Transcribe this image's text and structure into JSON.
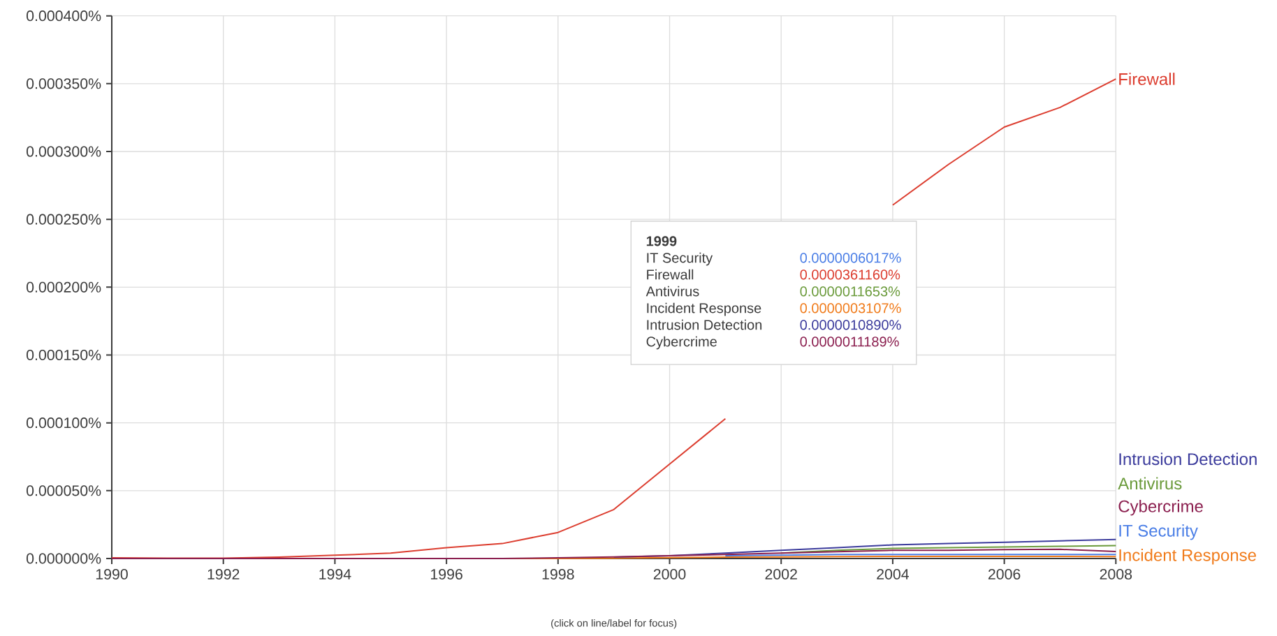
{
  "chart_data": {
    "type": "line",
    "x": [
      1990,
      1991,
      1992,
      1993,
      1994,
      1995,
      1996,
      1997,
      1998,
      1999,
      2000,
      2001,
      2002,
      2003,
      2004,
      2005,
      2006,
      2007,
      2008
    ],
    "series": [
      {
        "name": "IT Security",
        "color": "#4a7ee6",
        "values": [
          null,
          null,
          null,
          null,
          null,
          null,
          null,
          null,
          null,
          null,
          null,
          2e-06,
          2.5e-06,
          3e-06,
          3e-06,
          3e-06,
          3e-06,
          3e-06,
          3e-06
        ]
      },
      {
        "name": "Firewall",
        "color": "#dc3d2f",
        "values": [
          5e-07,
          3e-07,
          3e-07,
          1e-06,
          2.4e-06,
          4e-06,
          8e-06,
          1.1e-05,
          1.92e-05,
          3.6116e-05,
          6.96e-05,
          0.000103,
          null,
          null,
          0.0002605,
          0.0002905,
          0.000318,
          0.0003325,
          0.0003535
        ]
      },
      {
        "name": "Antivirus",
        "color": "#6a9a3a",
        "values": [
          null,
          null,
          null,
          null,
          null,
          null,
          null,
          null,
          null,
          null,
          null,
          null,
          4e-06,
          6e-06,
          7.5e-06,
          8e-06,
          8.5e-06,
          9e-06,
          9.5e-06
        ]
      },
      {
        "name": "Incident Response",
        "color": "#f07b1a",
        "values": [
          null,
          null,
          0,
          0,
          0,
          0,
          0,
          0,
          0,
          3.107e-07,
          6e-07,
          1e-06,
          1.2e-06,
          1.4e-06,
          1.5e-06,
          1.5e-06,
          1.5e-06,
          1.5e-06,
          1.4e-06
        ]
      },
      {
        "name": "Intrusion Detection",
        "color": "#3b3b9c",
        "values": [
          null,
          null,
          null,
          null,
          null,
          null,
          null,
          null,
          null,
          1.089e-06,
          2e-06,
          4e-06,
          6e-06,
          8e-06,
          1e-05,
          1.1e-05,
          1.2e-05,
          1.3e-05,
          1.4e-05
        ]
      },
      {
        "name": "Cybercrime",
        "color": "#8b1f4f",
        "values": [
          0,
          0,
          0,
          0,
          0,
          0,
          0,
          0,
          5e-07,
          1.1189e-06,
          2e-06,
          3e-06,
          4e-06,
          5e-06,
          6e-06,
          6e-06,
          6.5e-06,
          6.8e-06,
          5.1e-06
        ]
      }
    ],
    "xlim": [
      1990,
      2008
    ],
    "xticks": [
      1990,
      1992,
      1994,
      1996,
      1998,
      2000,
      2002,
      2004,
      2006,
      2008
    ],
    "ylim": [
      0,
      0.0004
    ],
    "yticks": [
      {
        "value": 0,
        "label": "0.000000%"
      },
      {
        "value": 5e-05,
        "label": "0.000050%"
      },
      {
        "value": 0.0001,
        "label": "0.000100%"
      },
      {
        "value": 0.00015,
        "label": "0.000150%"
      },
      {
        "value": 0.0002,
        "label": "0.000200%"
      },
      {
        "value": 0.00025,
        "label": "0.000250%"
      },
      {
        "value": 0.0003,
        "label": "0.000300%"
      },
      {
        "value": 0.00035,
        "label": "0.000350%"
      },
      {
        "value": 0.0004,
        "label": "0.000400%"
      }
    ],
    "grid": true,
    "legend": false,
    "marker": "none",
    "line_style": "solid",
    "annotations": [
      "1999",
      "IT Security",
      "0.0000006017%",
      "Firewall",
      "0.0000361160%",
      "Antivirus",
      "0.0000011653%",
      "Incident Response",
      "0.0000003107%",
      "Intrusion Detection",
      "0.0000010890%",
      "Cybercrime",
      "0.0000011189%",
      "(click on line/label for focus)"
    ]
  }
}
